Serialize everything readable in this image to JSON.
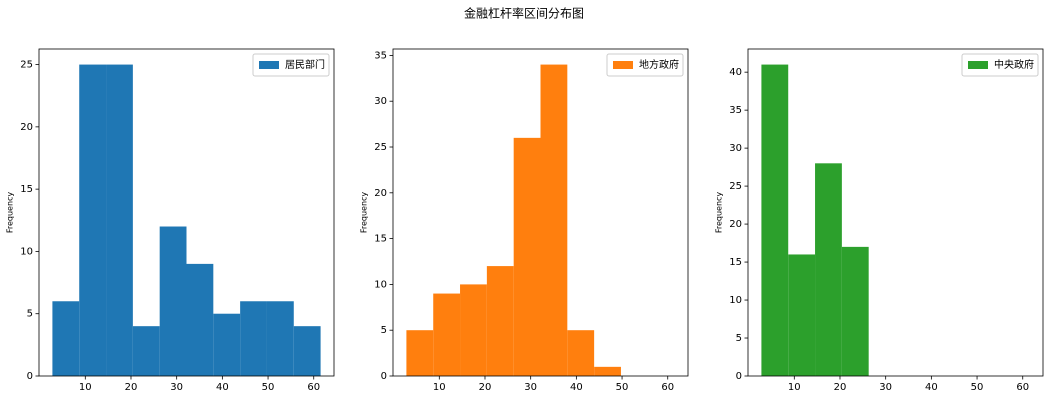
{
  "title": "金融杠杆率区间分布图",
  "chart_data": [
    {
      "type": "histogram",
      "ylabel": "Frequency",
      "legend": "upper-right",
      "bins": [
        2.8,
        8.67,
        14.54,
        20.41,
        26.28,
        32.15,
        38.02,
        43.89,
        49.76,
        55.63,
        61.5
      ],
      "series": [
        {
          "name": "居民部门",
          "color": "#1f77b4",
          "values": [
            6,
            25,
            25,
            4,
            12,
            9,
            5,
            6,
            6,
            4
          ]
        }
      ],
      "xlim": [
        -0.135,
        64.435
      ],
      "xticks": [
        10,
        20,
        30,
        40,
        50,
        60
      ],
      "ylim": [
        0,
        26.25
      ],
      "yticks": [
        0,
        5,
        10,
        15,
        20,
        25
      ],
      "grid": false
    },
    {
      "type": "histogram",
      "ylabel": "Frequency",
      "legend": "upper-right",
      "bins": [
        2.8,
        8.67,
        14.54,
        20.41,
        26.28,
        32.15,
        38.02,
        43.89,
        49.76,
        55.63,
        61.5
      ],
      "series": [
        {
          "name": "地方政府",
          "color": "#ff7f0e",
          "values": [
            5,
            9,
            10,
            12,
            26,
            34,
            5,
            1,
            0,
            0
          ]
        }
      ],
      "xlim": [
        -0.135,
        64.435
      ],
      "xticks": [
        10,
        20,
        30,
        40,
        50,
        60
      ],
      "ylim": [
        0,
        35.7
      ],
      "yticks": [
        0,
        5,
        10,
        15,
        20,
        25,
        30,
        35
      ],
      "grid": false
    },
    {
      "type": "histogram",
      "ylabel": "Frequency",
      "legend": "upper-right",
      "bins": [
        2.8,
        8.67,
        14.54,
        20.41,
        26.28,
        32.15,
        38.02,
        43.89,
        49.76,
        55.63,
        61.5
      ],
      "series": [
        {
          "name": "中央政府",
          "color": "#2ca02c",
          "values": [
            41,
            16,
            28,
            17,
            0,
            0,
            0,
            0,
            0,
            0
          ]
        }
      ],
      "xlim": [
        -0.135,
        64.435
      ],
      "xticks": [
        10,
        20,
        30,
        40,
        50,
        60
      ],
      "ylim": [
        0,
        43.05
      ],
      "yticks": [
        0,
        5,
        10,
        15,
        20,
        25,
        30,
        35,
        40
      ],
      "grid": false
    }
  ]
}
